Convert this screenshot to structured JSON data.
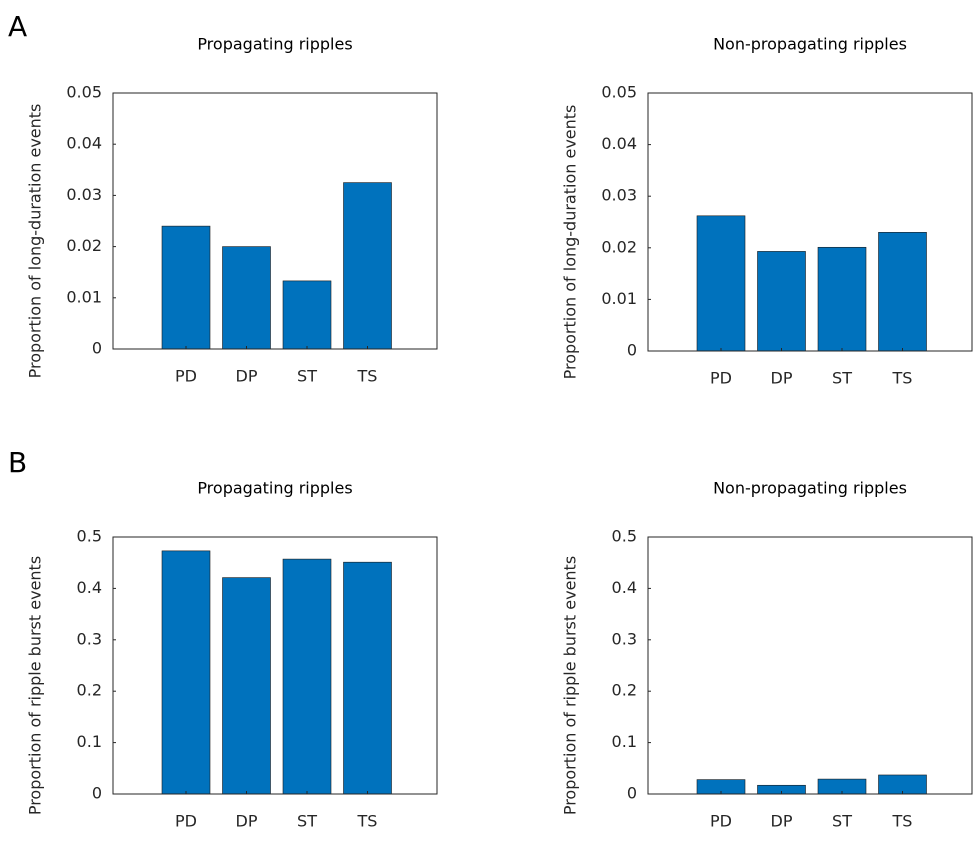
{
  "panel_labels": [
    "A",
    "B"
  ],
  "chart_data": [
    {
      "type": "bar",
      "title": "Propagating ripples",
      "ylabel": "Proportion of long-duration events",
      "categories": [
        "PD",
        "DP",
        "ST",
        "TS"
      ],
      "values": [
        0.024,
        0.02,
        0.0133,
        0.0325
      ],
      "color": "#0072bd",
      "ylim": [
        0,
        0.05
      ],
      "yticks": [
        0,
        0.01,
        0.02,
        0.03,
        0.04,
        0.05
      ],
      "grid": false
    },
    {
      "type": "bar",
      "title": "Non-propagating ripples",
      "ylabel": "Proportion of long-duration events",
      "categories": [
        "PD",
        "DP",
        "ST",
        "TS"
      ],
      "values": [
        0.0262,
        0.0193,
        0.0201,
        0.023
      ],
      "color": "#0072bd",
      "ylim": [
        0,
        0.05
      ],
      "yticks": [
        0,
        0.01,
        0.02,
        0.03,
        0.04,
        0.05
      ],
      "grid": false
    },
    {
      "type": "bar",
      "title": "Propagating ripples",
      "ylabel": "Proportion of ripple burst events",
      "categories": [
        "PD",
        "DP",
        "ST",
        "TS"
      ],
      "values": [
        0.473,
        0.421,
        0.457,
        0.451
      ],
      "color": "#0072bd",
      "ylim": [
        0,
        0.5
      ],
      "yticks": [
        0,
        0.1,
        0.2,
        0.3,
        0.4,
        0.5
      ],
      "grid": false
    },
    {
      "type": "bar",
      "title": "Non-propagating ripples",
      "ylabel": "Proportion of ripple burst events",
      "categories": [
        "PD",
        "DP",
        "ST",
        "TS"
      ],
      "values": [
        0.028,
        0.017,
        0.029,
        0.037
      ],
      "color": "#0072bd",
      "ylim": [
        0,
        0.5
      ],
      "yticks": [
        0,
        0.1,
        0.2,
        0.3,
        0.4,
        0.5
      ],
      "grid": false
    }
  ]
}
